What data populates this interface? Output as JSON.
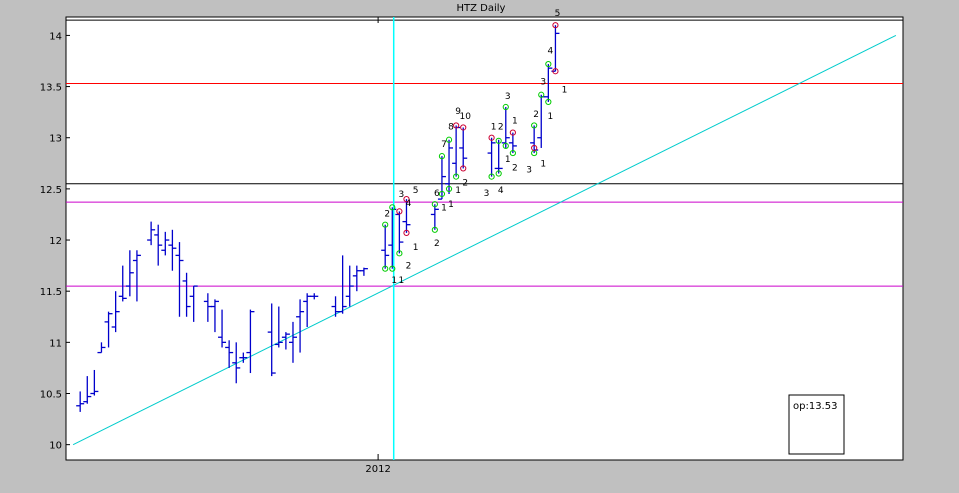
{
  "chart_data": {
    "type": "ohlc",
    "title": "HTZ Daily",
    "xlabel": "",
    "ylabel": "",
    "ylim": [
      9.85,
      14.18
    ],
    "xlim": [
      0,
      118
    ],
    "y_ticks": [
      10,
      10.5,
      11,
      11.5,
      12,
      12.5,
      13,
      13.5,
      14
    ],
    "y_tick_labels": [
      "10",
      "10.5",
      "11",
      "11.5",
      "12",
      "12.5",
      "13",
      "13.5",
      "14"
    ],
    "x_ticks": [
      {
        "x": 44,
        "label": "2012"
      }
    ],
    "grid": false,
    "background": "#ffffff",
    "frame_background": "#c0c0c0",
    "bar_color": "#0000cc",
    "bars": [
      [
        2,
        10.38,
        10.52,
        10.32,
        10.4
      ],
      [
        3,
        10.42,
        10.67,
        10.4,
        10.47
      ],
      [
        4,
        10.5,
        10.73,
        10.48,
        10.52
      ],
      [
        5,
        10.9,
        11.0,
        10.9,
        10.95
      ],
      [
        6,
        11.2,
        11.3,
        10.95,
        11.28
      ],
      [
        7,
        11.15,
        11.5,
        11.1,
        11.3
      ],
      [
        8,
        11.45,
        11.75,
        11.4,
        11.43
      ],
      [
        9,
        11.55,
        11.9,
        11.45,
        11.68
      ],
      [
        10,
        11.8,
        11.9,
        11.4,
        11.85
      ],
      [
        12,
        12.0,
        12.18,
        11.95,
        12.1
      ],
      [
        13,
        12.05,
        12.15,
        11.75,
        11.95
      ],
      [
        14,
        11.9,
        12.08,
        11.85,
        12.0
      ],
      [
        15,
        11.95,
        12.1,
        11.7,
        11.92
      ],
      [
        16,
        11.85,
        11.98,
        11.25,
        11.8
      ],
      [
        17,
        11.6,
        11.68,
        11.25,
        11.35
      ],
      [
        18,
        11.45,
        11.55,
        11.2,
        11.55
      ],
      [
        20,
        11.4,
        11.48,
        11.2,
        11.35
      ],
      [
        21,
        11.35,
        11.42,
        11.1,
        11.4
      ],
      [
        22,
        11.05,
        11.32,
        10.95,
        11.0
      ],
      [
        23,
        10.95,
        11.02,
        10.75,
        10.9
      ],
      [
        24,
        10.8,
        11.0,
        10.6,
        10.75
      ],
      [
        25,
        10.85,
        10.9,
        10.8,
        10.85
      ],
      [
        26,
        10.9,
        11.32,
        10.7,
        11.3
      ],
      [
        29,
        11.1,
        11.38,
        10.67,
        10.7
      ],
      [
        30,
        10.98,
        11.35,
        10.95,
        11.0
      ],
      [
        31,
        11.05,
        11.1,
        10.93,
        11.08
      ],
      [
        32,
        11.0,
        11.2,
        10.8,
        11.05
      ],
      [
        33,
        11.25,
        11.42,
        10.9,
        11.3
      ],
      [
        34,
        11.4,
        11.48,
        11.15,
        11.45
      ],
      [
        35,
        11.45,
        11.48,
        11.42,
        11.45
      ],
      [
        38,
        11.35,
        11.45,
        11.25,
        11.3
      ],
      [
        39,
        11.3,
        11.85,
        11.28,
        11.35
      ],
      [
        40,
        11.45,
        11.75,
        11.35,
        11.55
      ],
      [
        41,
        11.65,
        11.75,
        11.5,
        11.7
      ],
      [
        42,
        11.7,
        11.73,
        11.65,
        11.72
      ],
      [
        45,
        11.9,
        12.15,
        11.72,
        11.85
      ],
      [
        46,
        11.95,
        12.32,
        11.72,
        12.3
      ],
      [
        47,
        12.25,
        12.28,
        11.87,
        11.98
      ],
      [
        48,
        12.18,
        12.4,
        12.07,
        12.15
      ],
      [
        52,
        12.25,
        12.35,
        12.1,
        12.3
      ],
      [
        53,
        12.4,
        12.82,
        12.4,
        12.62
      ],
      [
        54,
        12.55,
        12.98,
        12.45,
        12.9
      ],
      [
        55,
        12.75,
        13.12,
        12.62,
        13.1
      ],
      [
        56,
        12.9,
        13.1,
        12.7,
        12.8
      ],
      [
        60,
        12.85,
        13.0,
        12.62,
        12.95
      ],
      [
        61,
        12.7,
        12.98,
        12.65,
        12.7
      ],
      [
        62,
        12.95,
        13.3,
        12.9,
        13.0
      ],
      [
        63,
        12.95,
        13.05,
        12.85,
        12.92
      ],
      [
        66,
        12.95,
        13.12,
        12.85,
        12.88
      ],
      [
        67,
        13.0,
        13.42,
        12.9,
        13.4
      ],
      [
        68,
        13.4,
        13.72,
        13.35,
        13.68
      ],
      [
        69,
        13.65,
        14.1,
        13.65,
        14.02
      ]
    ],
    "hlines": [
      {
        "y": 14.15,
        "color": "#000000"
      },
      {
        "y": 13.53,
        "color": "#ff0000"
      },
      {
        "y": 12.55,
        "color": "#000000"
      },
      {
        "y": 12.37,
        "color": "#cc00cc"
      },
      {
        "y": 11.55,
        "color": "#cc00cc"
      }
    ],
    "vline": {
      "x": 46.2,
      "color": "#00ffff"
    },
    "trendline": {
      "points": [
        [
          1,
          10.0
        ],
        [
          117,
          14.0
        ]
      ],
      "color": "#00cccc"
    },
    "markers_green": [
      [
        45,
        12.15
      ],
      [
        45,
        11.72
      ],
      [
        46,
        11.72
      ],
      [
        46,
        12.32
      ],
      [
        47,
        11.87
      ],
      [
        52,
        12.35
      ],
      [
        52,
        12.1
      ],
      [
        53,
        12.82
      ],
      [
        53,
        12.45
      ],
      [
        54,
        12.98
      ],
      [
        54,
        12.5
      ],
      [
        55,
        12.62
      ],
      [
        60,
        12.62
      ],
      [
        61,
        12.97
      ],
      [
        61,
        12.65
      ],
      [
        62,
        13.3
      ],
      [
        62,
        12.92
      ],
      [
        63,
        12.85
      ],
      [
        66,
        13.12
      ],
      [
        66,
        12.85
      ],
      [
        67,
        13.42
      ],
      [
        68,
        13.72
      ],
      [
        68,
        13.35
      ]
    ],
    "markers_red": [
      [
        47,
        12.28
      ],
      [
        48,
        12.4
      ],
      [
        48,
        12.07
      ],
      [
        55,
        13.12
      ],
      [
        56,
        13.1
      ],
      [
        56,
        12.7
      ],
      [
        60,
        13.0
      ],
      [
        63,
        13.05
      ],
      [
        66,
        12.9
      ],
      [
        69,
        14.1
      ],
      [
        69,
        13.65
      ]
    ],
    "wave_labels": [
      {
        "x": 46,
        "y": 11.62,
        "text": "1"
      },
      {
        "x": 47,
        "y": 11.62,
        "text": "1"
      },
      {
        "x": 45,
        "y": 12.27,
        "text": "2"
      },
      {
        "x": 47,
        "y": 12.46,
        "text": "3"
      },
      {
        "x": 48,
        "y": 11.76,
        "text": "2"
      },
      {
        "x": 48,
        "y": 12.37,
        "text": "4"
      },
      {
        "x": 49,
        "y": 12.5,
        "text": "5"
      },
      {
        "x": 49,
        "y": 11.94,
        "text": "1"
      },
      {
        "x": 52,
        "y": 11.98,
        "text": "2"
      },
      {
        "x": 52,
        "y": 12.47,
        "text": "6"
      },
      {
        "x": 53,
        "y": 12.33,
        "text": "1"
      },
      {
        "x": 53,
        "y": 12.95,
        "text": "7"
      },
      {
        "x": 54,
        "y": 12.36,
        "text": "1"
      },
      {
        "x": 54,
        "y": 13.12,
        "text": "8"
      },
      {
        "x": 55,
        "y": 12.5,
        "text": "1"
      },
      {
        "x": 55,
        "y": 13.27,
        "text": "9"
      },
      {
        "x": 56,
        "y": 12.57,
        "text": "2"
      },
      {
        "x": 56,
        "y": 13.22,
        "text": "10"
      },
      {
        "x": 59,
        "y": 12.47,
        "text": "3"
      },
      {
        "x": 60,
        "y": 13.12,
        "text": "1"
      },
      {
        "x": 61,
        "y": 12.5,
        "text": "4"
      },
      {
        "x": 61,
        "y": 13.12,
        "text": "2"
      },
      {
        "x": 62,
        "y": 13.42,
        "text": "3"
      },
      {
        "x": 62,
        "y": 12.8,
        "text": "1"
      },
      {
        "x": 63,
        "y": 13.18,
        "text": "1"
      },
      {
        "x": 63,
        "y": 12.72,
        "text": "2"
      },
      {
        "x": 65,
        "y": 12.7,
        "text": "3"
      },
      {
        "x": 67,
        "y": 12.76,
        "text": "1"
      },
      {
        "x": 66,
        "y": 13.24,
        "text": "2"
      },
      {
        "x": 67,
        "y": 13.56,
        "text": "3"
      },
      {
        "x": 68,
        "y": 13.86,
        "text": "4"
      },
      {
        "x": 68,
        "y": 13.22,
        "text": "1"
      },
      {
        "x": 69,
        "y": 14.23,
        "text": "5"
      },
      {
        "x": 70,
        "y": 13.48,
        "text": "1"
      }
    ],
    "info_box_text": "op:13.53"
  }
}
